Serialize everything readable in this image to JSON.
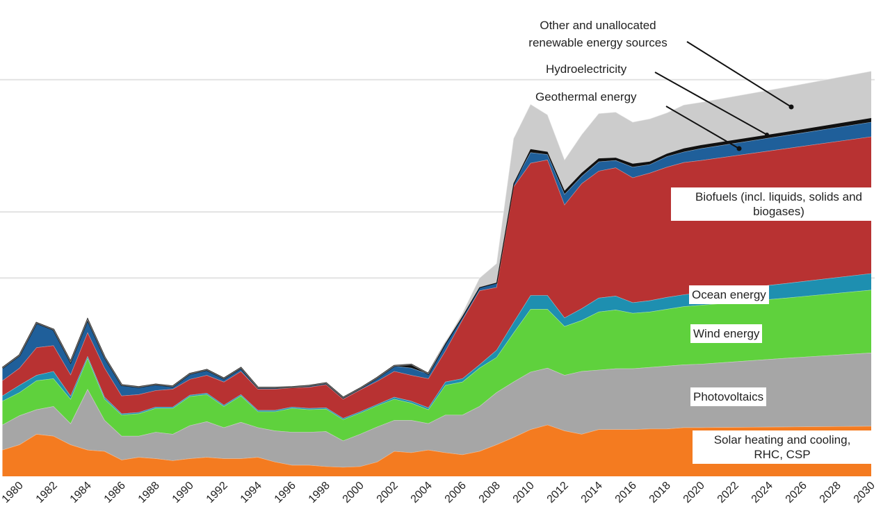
{
  "chart_data": {
    "type": "area",
    "stacked": true,
    "title": "",
    "xlabel": "",
    "ylabel": "",
    "x": [
      1979,
      1980,
      1981,
      1982,
      1983,
      1984,
      1985,
      1986,
      1987,
      1988,
      1989,
      1990,
      1991,
      1992,
      1993,
      1994,
      1995,
      1996,
      1997,
      1998,
      1999,
      2000,
      2001,
      2002,
      2003,
      2004,
      2005,
      2006,
      2007,
      2008,
      2009,
      2010,
      2011,
      2012,
      2013,
      2014,
      2015,
      2016,
      2017,
      2018,
      2019,
      2020,
      2025,
      2030
    ],
    "xticks": [
      "1980",
      "1982",
      "1984",
      "1986",
      "1988",
      "1990",
      "1992",
      "1994",
      "1996",
      "1998",
      "2000",
      "2002",
      "2004",
      "2006",
      "2008",
      "2010",
      "2012",
      "2014",
      "2016",
      "2018",
      "2020",
      "2022",
      "2024",
      "2026",
      "2028",
      "2030"
    ],
    "xlim": [
      1979,
      2030
    ],
    "ylim": [
      0,
      6.1
    ],
    "gridlines": [
      3,
      4,
      6
    ],
    "grid": true,
    "series": [
      {
        "name": "Solar heating and cooling, RHC, CSP",
        "color": "#f47b20",
        "values": [
          0.4,
          0.48,
          0.64,
          0.61,
          0.48,
          0.4,
          0.38,
          0.25,
          0.29,
          0.27,
          0.24,
          0.27,
          0.29,
          0.27,
          0.27,
          0.29,
          0.22,
          0.17,
          0.17,
          0.15,
          0.14,
          0.15,
          0.22,
          0.38,
          0.36,
          0.4,
          0.36,
          0.33,
          0.38,
          0.48,
          0.59,
          0.71,
          0.78,
          0.69,
          0.64,
          0.71,
          0.71,
          0.71,
          0.72,
          0.72,
          0.74,
          0.74,
          0.75,
          0.76
        ]
      },
      {
        "name": "Photovoltaics",
        "color": "#a6a6a6",
        "values": [
          0.38,
          0.44,
          0.37,
          0.45,
          0.32,
          0.92,
          0.47,
          0.36,
          0.32,
          0.4,
          0.4,
          0.5,
          0.54,
          0.47,
          0.55,
          0.45,
          0.47,
          0.5,
          0.5,
          0.53,
          0.4,
          0.49,
          0.53,
          0.47,
          0.49,
          0.4,
          0.57,
          0.6,
          0.68,
          0.79,
          0.84,
          0.87,
          0.86,
          0.84,
          0.95,
          0.9,
          0.92,
          0.92,
          0.93,
          0.95,
          0.95,
          0.96,
          1.04,
          1.11
        ]
      },
      {
        "name": "Wind energy",
        "color": "#5fd13d",
        "values": [
          0.36,
          0.35,
          0.44,
          0.42,
          0.37,
          0.47,
          0.32,
          0.32,
          0.34,
          0.36,
          0.39,
          0.44,
          0.41,
          0.32,
          0.4,
          0.24,
          0.29,
          0.36,
          0.34,
          0.34,
          0.32,
          0.32,
          0.32,
          0.32,
          0.26,
          0.21,
          0.45,
          0.5,
          0.58,
          0.53,
          0.74,
          0.95,
          0.89,
          0.74,
          0.77,
          0.88,
          0.89,
          0.84,
          0.84,
          0.86,
          0.88,
          0.89,
          0.91,
          0.95
        ]
      },
      {
        "name": "Ocean energy",
        "color": "#1e8fb0",
        "values": [
          0.08,
          0.11,
          0.08,
          0.11,
          0.05,
          0.03,
          0.03,
          0.02,
          0.02,
          0.02,
          0.02,
          0.02,
          0.02,
          0.02,
          0.02,
          0.02,
          0.02,
          0.02,
          0.02,
          0.02,
          0.02,
          0.02,
          0.02,
          0.03,
          0.03,
          0.03,
          0.05,
          0.05,
          0.05,
          0.11,
          0.16,
          0.21,
          0.21,
          0.13,
          0.18,
          0.21,
          0.21,
          0.16,
          0.17,
          0.18,
          0.18,
          0.19,
          0.22,
          0.25
        ]
      },
      {
        "name": "Biofuels (incl. liquids, solids and biogases)",
        "color": "#b83232",
        "values": [
          0.23,
          0.26,
          0.42,
          0.39,
          0.32,
          0.36,
          0.44,
          0.27,
          0.27,
          0.25,
          0.27,
          0.24,
          0.27,
          0.35,
          0.35,
          0.32,
          0.32,
          0.29,
          0.32,
          0.35,
          0.29,
          0.33,
          0.35,
          0.39,
          0.39,
          0.44,
          0.47,
          0.89,
          1.12,
          0.95,
          2.05,
          2.0,
          2.05,
          1.71,
          1.89,
          1.92,
          1.94,
          1.89,
          1.93,
          1.97,
          2.0,
          2.0,
          2.04,
          2.07
        ]
      },
      {
        "name": "Geothermal energy",
        "color": "#1f5f9a",
        "values": [
          0.19,
          0.19,
          0.37,
          0.24,
          0.19,
          0.19,
          0.16,
          0.16,
          0.11,
          0.09,
          0.04,
          0.08,
          0.08,
          0.05,
          0.05,
          0.02,
          0.02,
          0.01,
          0.02,
          0.02,
          0.02,
          0.02,
          0.05,
          0.08,
          0.11,
          0.07,
          0.11,
          0.05,
          0.05,
          0.07,
          0.05,
          0.16,
          0.08,
          0.16,
          0.11,
          0.14,
          0.11,
          0.16,
          0.13,
          0.16,
          0.16,
          0.18,
          0.2,
          0.22
        ]
      },
      {
        "name": "Hydroelectricity",
        "color": "#111111",
        "values": [
          0,
          0,
          0,
          0,
          0,
          0,
          0,
          0,
          0,
          0,
          0,
          0,
          0,
          0,
          0,
          0,
          0,
          0,
          0,
          0,
          0,
          0,
          0,
          0,
          0.05,
          0,
          0,
          0,
          0,
          0,
          0,
          0.05,
          0.04,
          0.05,
          0.05,
          0.05,
          0.04,
          0.05,
          0.04,
          0.04,
          0.05,
          0.05,
          0.05,
          0.06
        ]
      },
      {
        "name": "Other and unallocated renewable energy sources",
        "color": "#cccccc",
        "values": [
          0,
          0,
          0,
          0,
          0,
          0,
          0,
          0,
          0,
          0,
          0,
          0,
          0,
          0,
          0,
          0,
          0,
          0,
          0,
          0,
          0,
          0,
          0,
          0,
          0,
          0,
          0.02,
          0.05,
          0.14,
          0.29,
          0.68,
          0.68,
          0.56,
          0.47,
          0.58,
          0.68,
          0.69,
          0.63,
          0.65,
          0.62,
          0.66,
          0.65,
          0.68,
          0.71
        ]
      }
    ],
    "labels": {
      "biofuels": [
        "Biofuels (incl. liquids, solids and",
        "biogases)"
      ],
      "ocean": "Ocean energy",
      "wind": "Wind energy",
      "pv": "Photovoltaics",
      "solar": [
        "Solar heating and cooling,",
        "RHC, CSP"
      ],
      "other": [
        "Other and unallocated",
        "renewable energy sources"
      ],
      "hydro": "Hydroelectricity",
      "geothermal": "Geothermal energy"
    }
  }
}
